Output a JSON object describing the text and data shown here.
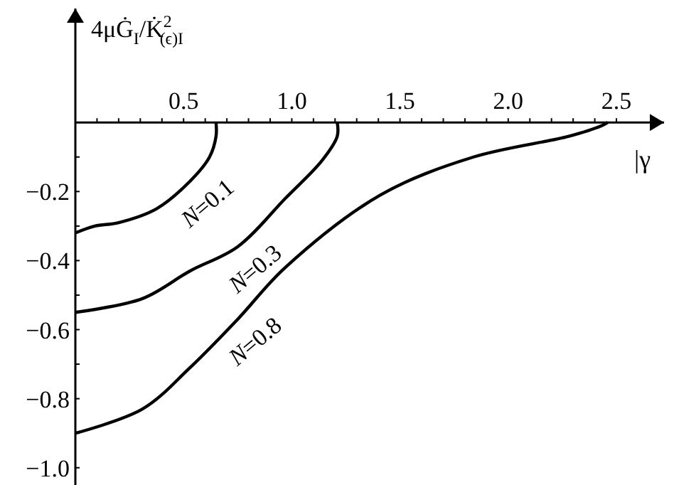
{
  "chart_data": {
    "type": "line",
    "ylabel": "4μĠ$_{I}$/K̇$^{2}$$_{(ϵ)I}$",
    "xlabel": "|γ",
    "xlim": [
      0,
      2.72
    ],
    "ylim": [
      -1.05,
      0.33
    ],
    "xticks": [
      {
        "value": 0.1,
        "label": null
      },
      {
        "value": 0.2,
        "label": null
      },
      {
        "value": 0.3,
        "label": null
      },
      {
        "value": 0.4,
        "label": null
      },
      {
        "value": 0.5,
        "label": "0.5"
      },
      {
        "value": 0.6,
        "label": null
      },
      {
        "value": 0.7,
        "label": null
      },
      {
        "value": 0.8,
        "label": null
      },
      {
        "value": 0.9,
        "label": null
      },
      {
        "value": 1.0,
        "label": "1.0"
      },
      {
        "value": 1.1,
        "label": null
      },
      {
        "value": 1.2,
        "label": null
      },
      {
        "value": 1.3,
        "label": null
      },
      {
        "value": 1.4,
        "label": null
      },
      {
        "value": 1.5,
        "label": "1.5"
      },
      {
        "value": 1.6,
        "label": null
      },
      {
        "value": 1.7,
        "label": null
      },
      {
        "value": 1.8,
        "label": null
      },
      {
        "value": 1.9,
        "label": null
      },
      {
        "value": 2.0,
        "label": "2.0"
      },
      {
        "value": 2.1,
        "label": null
      },
      {
        "value": 2.2,
        "label": null
      },
      {
        "value": 2.3,
        "label": null
      },
      {
        "value": 2.4,
        "label": null
      },
      {
        "value": 2.5,
        "label": "2.5"
      }
    ],
    "yticks": [
      {
        "value": -0.1,
        "label": null
      },
      {
        "value": -0.2,
        "label": "−0.2"
      },
      {
        "value": -0.3,
        "label": null
      },
      {
        "value": -0.4,
        "label": "−0.4"
      },
      {
        "value": -0.5,
        "label": null
      },
      {
        "value": -0.6,
        "label": "−0.6"
      },
      {
        "value": -0.7,
        "label": null
      },
      {
        "value": -0.8,
        "label": "−0.8"
      },
      {
        "value": -0.9,
        "label": null
      },
      {
        "value": -1.0,
        "label": "−1.0"
      }
    ],
    "series": [
      {
        "color": "#000000",
        "x": [
          0,
          0.09,
          0.2,
          0.375,
          0.53,
          0.62,
          0.65,
          0.65
        ],
        "values": [
          -0.32,
          -0.3,
          -0.29,
          -0.25,
          -0.17,
          -0.1,
          -0.04,
          0
        ]
      },
      {
        "color": "#000000",
        "x": [
          0,
          0.31,
          0.53,
          0.75,
          0.97,
          1.14,
          1.21,
          1.21
        ],
        "values": [
          -0.55,
          -0.51,
          -0.43,
          -0.36,
          -0.22,
          -0.11,
          -0.04,
          0
        ]
      },
      {
        "color": "#000000",
        "x": [
          0,
          0.31,
          0.53,
          0.75,
          0.97,
          1.41,
          1.84,
          2.28,
          2.43,
          2.46
        ],
        "values": [
          -0.9,
          -0.83,
          -0.71,
          -0.57,
          -0.42,
          -0.21,
          -0.1,
          -0.04,
          -0.01,
          0
        ]
      }
    ],
    "annotations": [
      "N=0.1",
      "N=0.3",
      "N=0.8"
    ],
    "marker": "none",
    "line_style": "solid",
    "grid": false
  }
}
